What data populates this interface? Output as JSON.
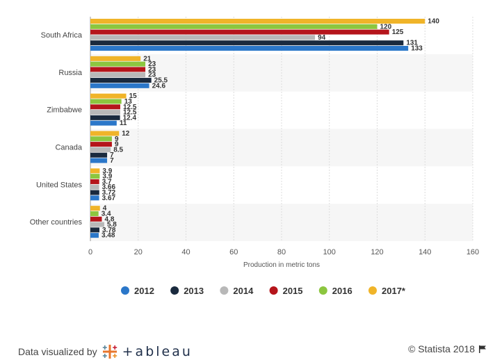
{
  "chart_data": {
    "type": "bar",
    "orientation": "horizontal",
    "categories": [
      "South Africa",
      "Russia",
      "Zimbabwe",
      "Canada",
      "United States",
      "Other countries"
    ],
    "series": [
      {
        "name": "2017*",
        "color": "#f0b429",
        "values": [
          140,
          21,
          15,
          12,
          3.9,
          4
        ],
        "labels": [
          "140",
          "21",
          "15",
          "12",
          "3.9",
          "4"
        ]
      },
      {
        "name": "2016",
        "color": "#8cc63f",
        "values": [
          120,
          23,
          13,
          9,
          3.9,
          3.4
        ],
        "labels": [
          "120",
          "23",
          "13",
          "9",
          "3.9",
          "3.4"
        ]
      },
      {
        "name": "2015",
        "color": "#b5151b",
        "values": [
          125,
          23,
          12.5,
          9,
          3.7,
          4.8
        ],
        "labels": [
          "125",
          "23",
          "12.5",
          "9",
          "3.7",
          "4.8"
        ]
      },
      {
        "name": "2014",
        "color": "#b8b8b8",
        "values": [
          94,
          23,
          12.5,
          8.5,
          3.66,
          5.8
        ],
        "labels": [
          "94",
          "23",
          "12.5",
          "8.5",
          "3.66",
          "5.8"
        ]
      },
      {
        "name": "2013",
        "color": "#1a2a3e",
        "values": [
          131,
          25.5,
          12.4,
          7,
          3.72,
          3.78
        ],
        "labels": [
          "131",
          "25.5",
          "12.4",
          "7",
          "3.72",
          "3.78"
        ]
      },
      {
        "name": "2012",
        "color": "#2b77c9",
        "values": [
          133,
          24.6,
          11,
          7,
          3.67,
          3.48
        ],
        "labels": [
          "133",
          "24.6",
          "11",
          "7",
          "3.67",
          "3.48"
        ]
      }
    ],
    "xlabel": "Production in metric tons",
    "xlim": [
      0,
      160
    ],
    "xticks": [
      0,
      20,
      40,
      60,
      80,
      100,
      120,
      140,
      160
    ],
    "legend": {
      "placement": "bottom",
      "items": [
        {
          "name": "2012",
          "color": "#2b77c9"
        },
        {
          "name": "2013",
          "color": "#1a2a3e"
        },
        {
          "name": "2014",
          "color": "#b8b8b8"
        },
        {
          "name": "2015",
          "color": "#b5151b"
        },
        {
          "name": "2016",
          "color": "#8cc63f"
        },
        {
          "name": "2017*",
          "color": "#f0b429"
        }
      ]
    }
  },
  "footer": {
    "data_visualized_by": "Data visualized by",
    "tableau": "+ableau",
    "copyright": "© Statista 2018"
  },
  "icons": {
    "tableau_logo": "tableau-cross-logo-icon",
    "flag": "flag-icon"
  }
}
